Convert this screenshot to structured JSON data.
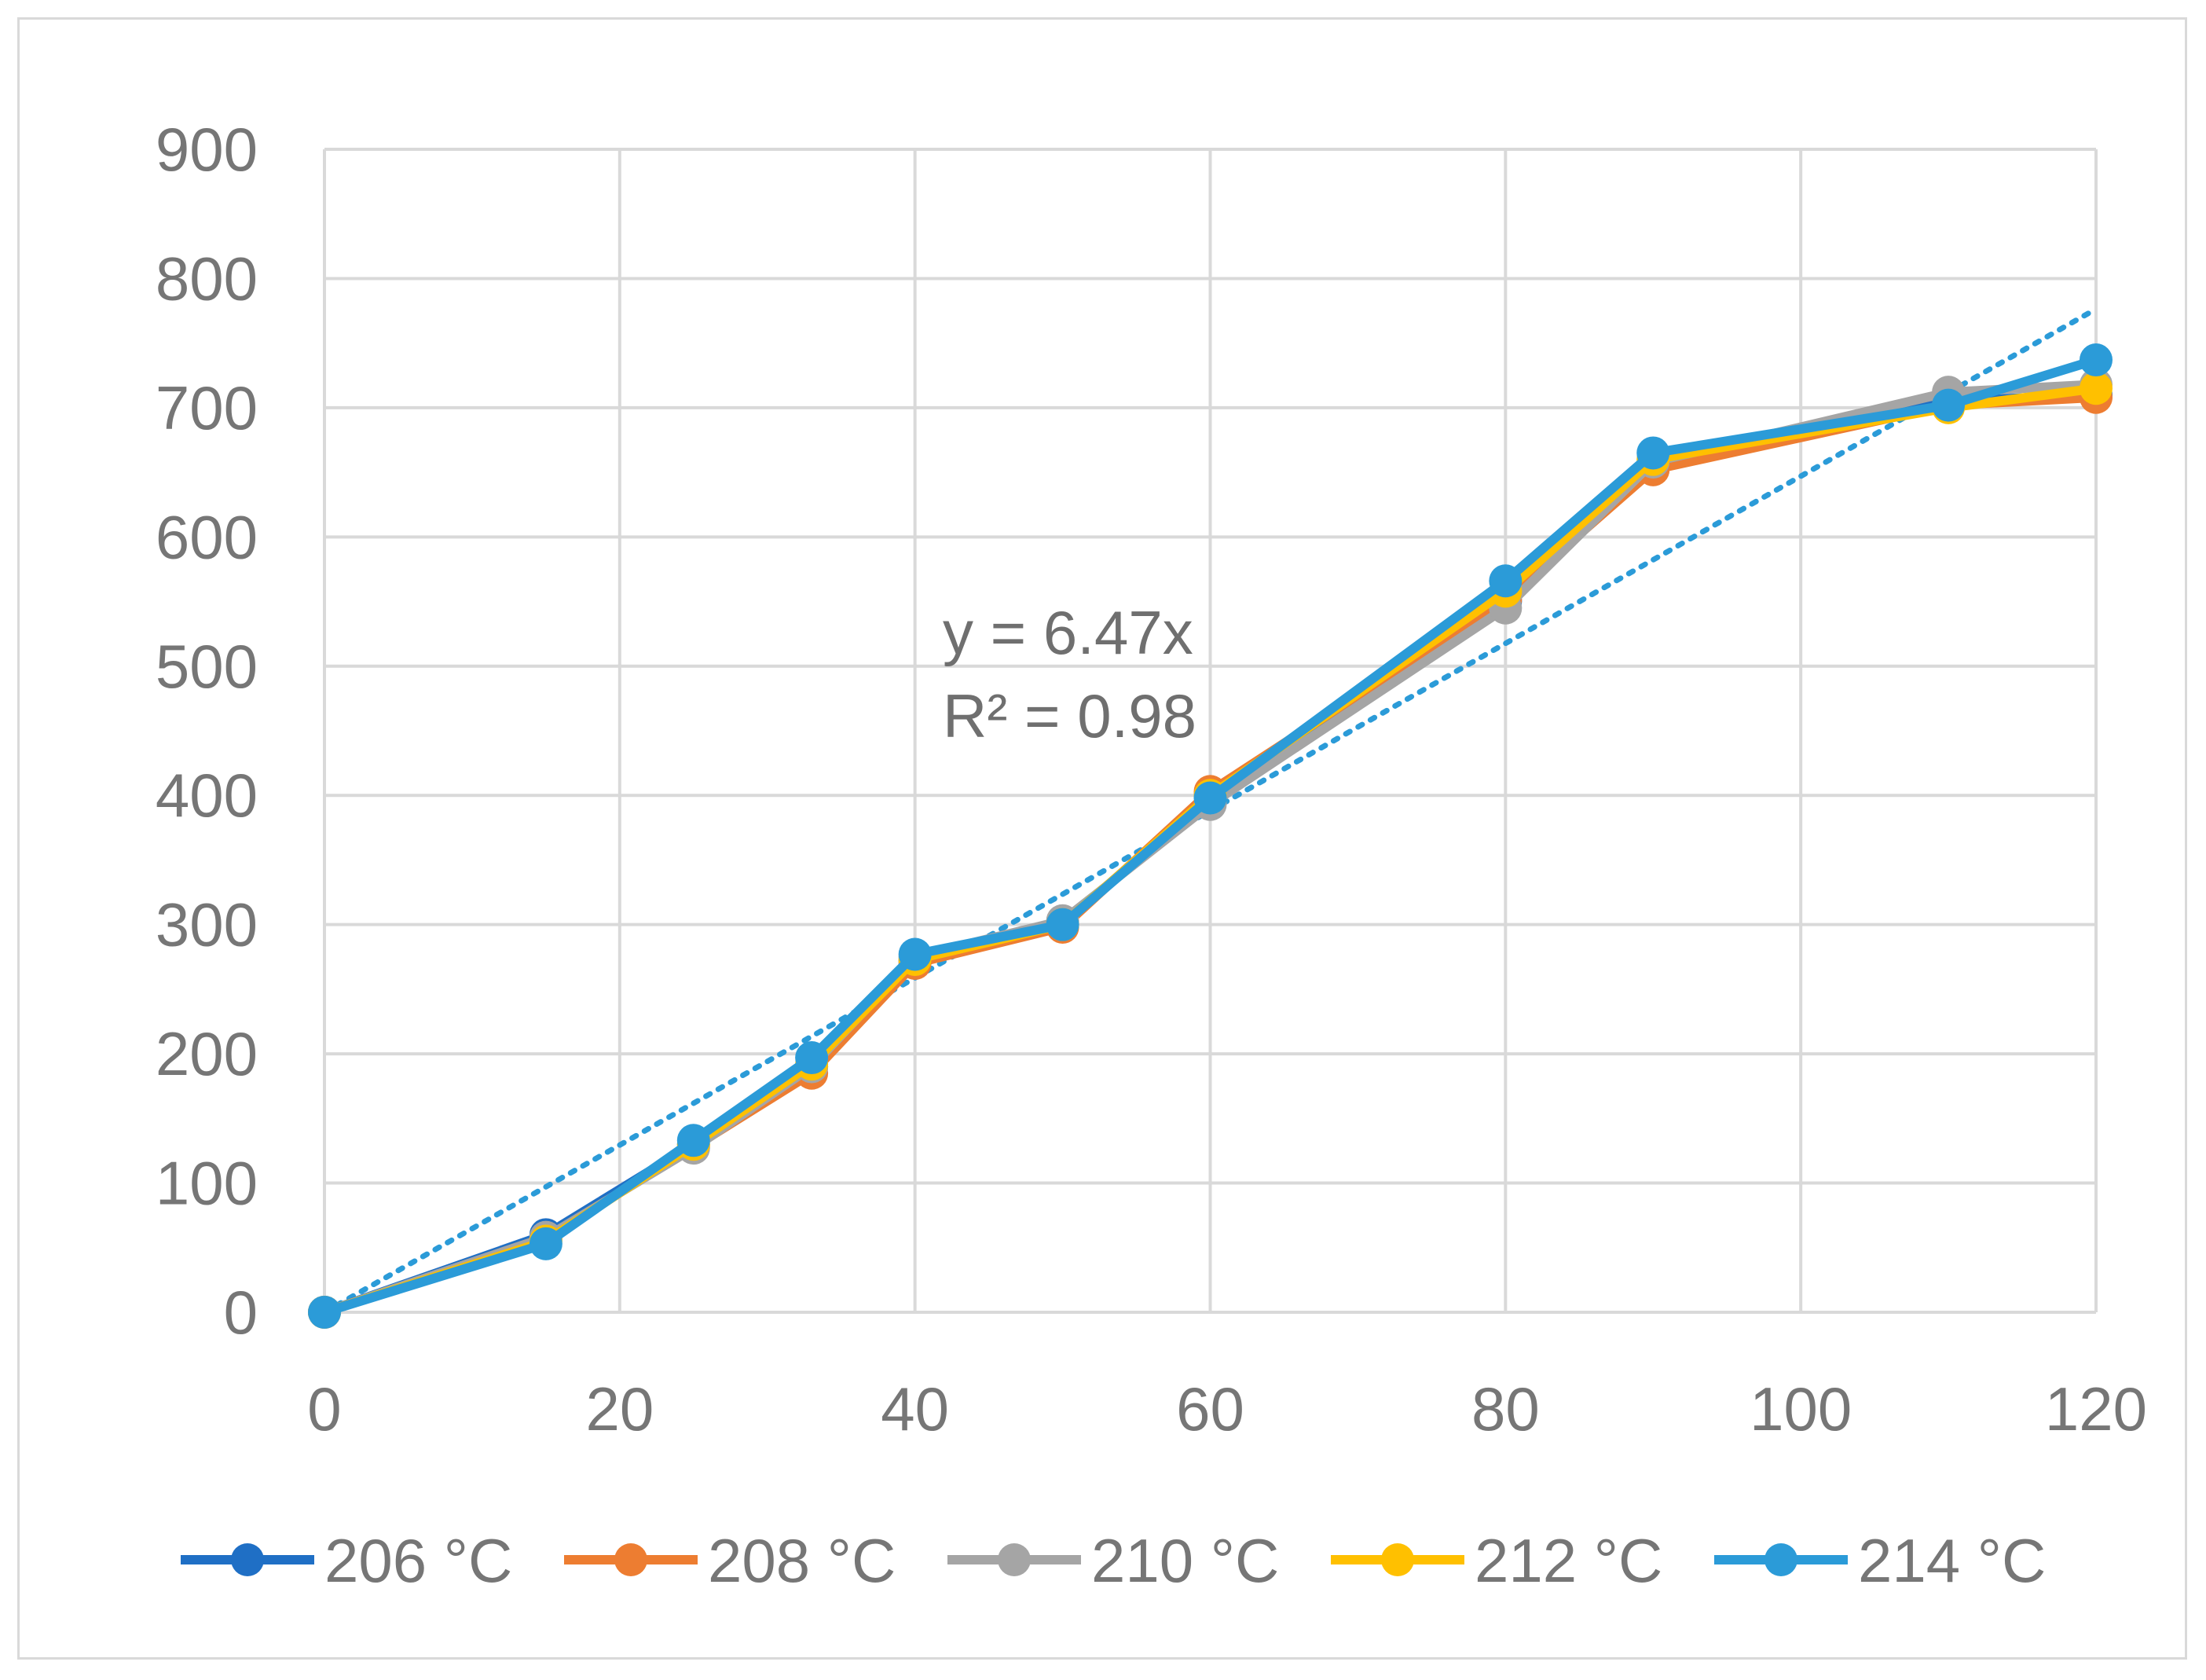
{
  "chart_data": {
    "type": "line",
    "title": "",
    "xlabel": "",
    "ylabel": "",
    "xlim": [
      0,
      120
    ],
    "ylim": [
      0,
      900
    ],
    "x_ticks": [
      0,
      20,
      40,
      60,
      80,
      100,
      120
    ],
    "y_ticks": [
      0,
      100,
      200,
      300,
      400,
      500,
      600,
      700,
      800,
      900
    ],
    "grid": true,
    "legend_position": "bottom",
    "x": [
      0,
      15,
      25,
      33,
      40,
      50,
      60,
      80,
      90,
      110,
      120
    ],
    "series": [
      {
        "name": "206 °C",
        "color": "#1f6fc5",
        "values": [
          0,
          60,
          130,
          190,
          272,
          300,
          400,
          550,
          655,
          705,
          710
        ]
      },
      {
        "name": "208 °C",
        "color": "#ed7d31",
        "values": [
          0,
          57,
          128,
          185,
          270,
          298,
          403,
          552,
          652,
          702,
          708
        ]
      },
      {
        "name": "210 °C",
        "color": "#a5a5a5",
        "values": [
          0,
          58,
          127,
          190,
          275,
          303,
          393,
          545,
          658,
          712,
          718
        ]
      },
      {
        "name": "212 °C",
        "color": "#ffc000",
        "values": [
          0,
          55,
          130,
          192,
          273,
          300,
          400,
          558,
          660,
          700,
          715
        ]
      },
      {
        "name": "214 °C",
        "color": "#2b9bd8",
        "values": [
          0,
          53,
          133,
          197,
          277,
          300,
          398,
          566,
          665,
          702,
          737
        ]
      }
    ],
    "trendline": {
      "series": "214 °C",
      "slope": 6.47,
      "intercept": 0,
      "style": "dotted",
      "color": "#2b9bd8",
      "equation": "y = 6.47x",
      "r_squared": "R² = 0.98"
    }
  }
}
